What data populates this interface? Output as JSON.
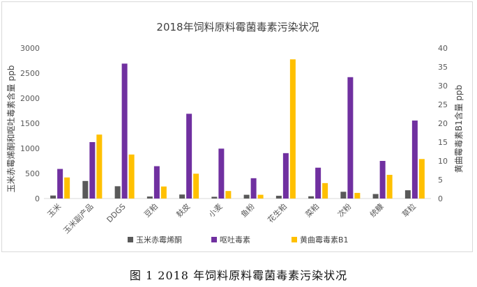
{
  "chart_data": {
    "type": "bar",
    "title": "2018年饲料原料霉菌毒素污染状况",
    "ylabel_left": "玉米赤霉烯酮和呕吐毒素含量 ppb",
    "ylabel_right": "黄曲霉毒素B1含量 ppb",
    "ylim_left": [
      0,
      3000
    ],
    "ylim_right": [
      0,
      40
    ],
    "yticks_left": [
      "0",
      "500",
      "1000",
      "1500",
      "2000",
      "2500",
      "3000"
    ],
    "yticks_right": [
      "0",
      "5",
      "10",
      "15",
      "20",
      "25",
      "30",
      "35",
      "40"
    ],
    "categories": [
      "玉米",
      "玉米副产品",
      "DDGS",
      "豆粕",
      "麸皮",
      "小麦",
      "鱼粉",
      "花生粕",
      "菜粕",
      "次粉",
      "统糠",
      "草粒"
    ],
    "series": [
      {
        "name": "玉米赤霉烯酮",
        "axis": "left",
        "color": "#595959",
        "values": [
          60,
          350,
          245,
          40,
          80,
          35,
          75,
          55,
          45,
          135,
          90,
          165
        ]
      },
      {
        "name": "呕吐毒素",
        "axis": "left",
        "color": "#7030a0",
        "values": [
          590,
          1125,
          2690,
          645,
          1690,
          995,
          405,
          905,
          615,
          2420,
          750,
          1555
        ]
      },
      {
        "name": "黄曲霉毒素B1",
        "axis": "right",
        "color": "#ffc000",
        "values": [
          5.6,
          17,
          11.7,
          3.2,
          6.6,
          2,
          1,
          37,
          4.1,
          1.5,
          6.3,
          10.5
        ]
      }
    ],
    "grid": false,
    "legend_position": "bottom"
  },
  "caption": "图 1  2018 年饲料原料霉菌毒素污染状况"
}
